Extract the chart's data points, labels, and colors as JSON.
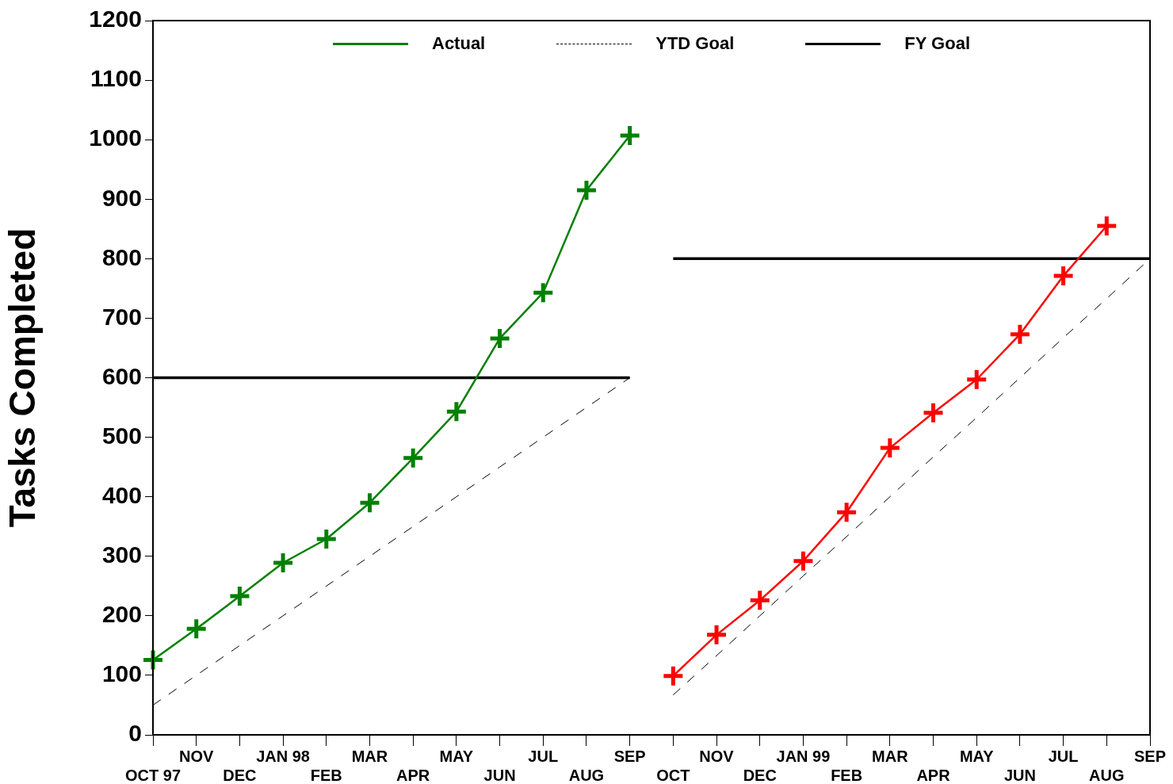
{
  "chart_data": {
    "type": "line",
    "ylabel": "Tasks Completed",
    "legend": "top",
    "categories": [
      "OCT 97",
      "NOV",
      "DEC",
      "JAN 98",
      "FEB",
      "MAR",
      "APR",
      "MAY",
      "JUN",
      "JUL",
      "AUG",
      "SEP",
      "OCT",
      "NOV",
      "DEC",
      "JAN 99",
      "FEB",
      "MAR",
      "APR",
      "MAY",
      "JUN",
      "JUL",
      "AUG",
      "SEP"
    ],
    "ylim": [
      0,
      1200
    ],
    "yticks": [
      0,
      100,
      200,
      300,
      400,
      500,
      600,
      700,
      800,
      900,
      1000,
      1100,
      1200
    ],
    "series": [
      {
        "name": "Actual",
        "color": "#008000",
        "marker": "cross",
        "line_style": "solid",
        "values": [
          126,
          178,
          233,
          289,
          329,
          390,
          465,
          543,
          666,
          743,
          915,
          1007,
          null,
          null,
          null,
          null,
          null,
          null,
          null,
          null,
          null,
          null,
          null,
          null
        ]
      },
      {
        "name": "YTD Goal",
        "color": "#000000",
        "marker": "none",
        "line_style": "dashed",
        "values": [
          50,
          100,
          150,
          200,
          250,
          300,
          350,
          400,
          450,
          500,
          550,
          600,
          null,
          null,
          null,
          null,
          null,
          null,
          null,
          null,
          null,
          null,
          null,
          null
        ]
      },
      {
        "name": "FY Goal",
        "color": "#000000",
        "marker": "none",
        "line_style": "solid",
        "values": [
          600,
          600,
          600,
          600,
          600,
          600,
          600,
          600,
          600,
          600,
          600,
          600,
          null,
          null,
          null,
          null,
          null,
          null,
          null,
          null,
          null,
          null,
          null,
          null
        ]
      },
      {
        "color": "#ff0000",
        "marker": "cross",
        "line_style": "solid",
        "values": [
          null,
          null,
          null,
          null,
          null,
          null,
          null,
          null,
          null,
          null,
          null,
          null,
          99,
          168,
          226,
          292,
          374,
          482,
          541,
          597,
          673,
          771,
          855,
          null
        ]
      },
      {
        "color": "#000000",
        "marker": "none",
        "line_style": "dashed",
        "values": [
          null,
          null,
          null,
          null,
          null,
          null,
          null,
          null,
          null,
          null,
          null,
          null,
          67,
          133,
          200,
          267,
          333,
          400,
          467,
          533,
          600,
          667,
          733,
          800
        ]
      },
      {
        "color": "#000000",
        "marker": "none",
        "line_style": "solid",
        "values": [
          null,
          null,
          null,
          null,
          null,
          null,
          null,
          null,
          null,
          null,
          null,
          null,
          800,
          800,
          800,
          800,
          800,
          800,
          800,
          800,
          800,
          800,
          800,
          800
        ]
      }
    ]
  }
}
